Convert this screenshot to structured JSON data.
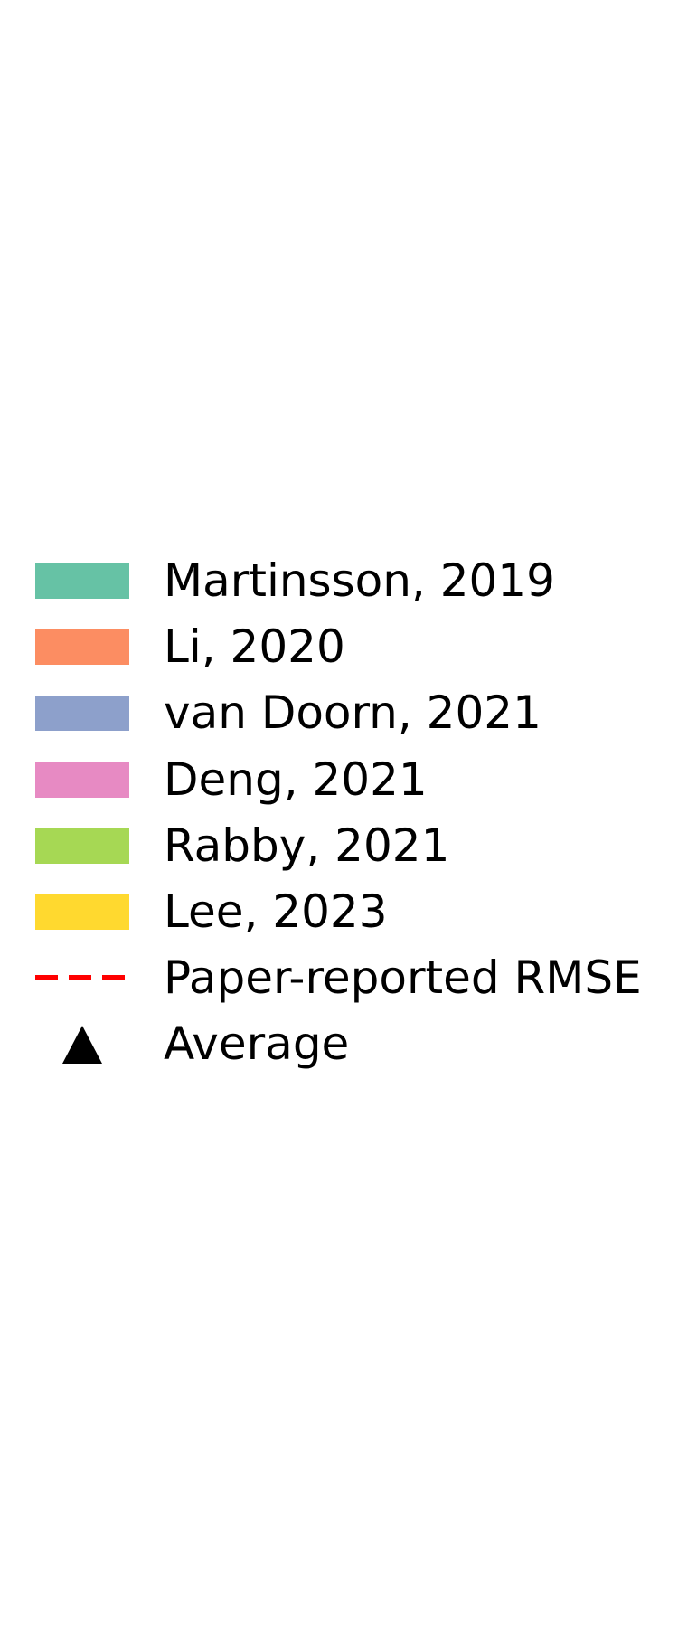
{
  "chart_data": {
    "type": "legend",
    "legend": {
      "entries": [
        {
          "label": "Martinsson, 2019",
          "kind": "patch",
          "color": "#66c2a5"
        },
        {
          "label": "Li, 2020",
          "kind": "patch",
          "color": "#fc8d62"
        },
        {
          "label": "van Doorn, 2021",
          "kind": "patch",
          "color": "#8da0cb"
        },
        {
          "label": "Deng, 2021",
          "kind": "patch",
          "color": "#e78ac3"
        },
        {
          "label": "Rabby, 2021",
          "kind": "patch",
          "color": "#a6d854"
        },
        {
          "label": "Lee, 2023",
          "kind": "patch",
          "color": "#ffd92f"
        },
        {
          "label": "Paper-reported RMSE",
          "kind": "dashed-line",
          "color": "#ff0000"
        },
        {
          "label": "Average",
          "kind": "triangle-marker",
          "color": "#000000"
        }
      ]
    }
  }
}
